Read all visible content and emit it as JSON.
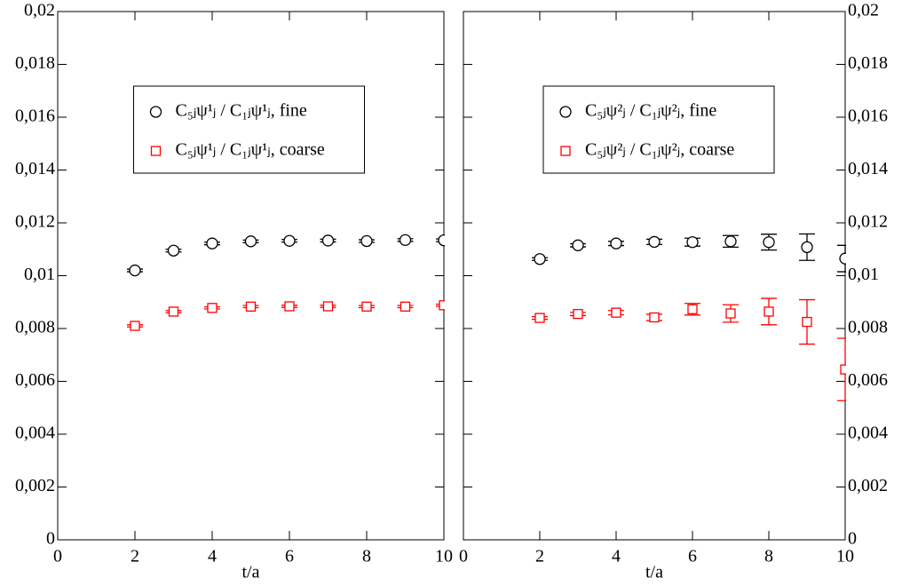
{
  "chart_data": [
    {
      "type": "scatter",
      "xlabel": "t/a",
      "xlim": [
        0,
        10
      ],
      "ylim": [
        0,
        0.02
      ],
      "xticks": [
        0,
        2,
        4,
        6,
        8,
        10
      ],
      "yticks": [
        0,
        {
          "value": 0.002,
          "label": "0,002"
        },
        {
          "value": 0.004,
          "label": "0,004"
        },
        {
          "value": 0.006,
          "label": "0,006"
        },
        {
          "value": 0.008,
          "label": "0,008"
        },
        {
          "value": 0.01,
          "label": "0,01"
        },
        {
          "value": 0.012,
          "label": "0,012"
        },
        {
          "value": 0.014,
          "label": "0,014"
        },
        {
          "value": 0.016,
          "label": "0,016"
        },
        {
          "value": 0.018,
          "label": "0,018"
        },
        {
          "value": 0.02,
          "label": "0,02"
        }
      ],
      "ytick_side": "left",
      "legend": "upper center",
      "x": [
        2,
        3,
        4,
        5,
        6,
        7,
        8,
        9,
        10
      ],
      "series": [
        {
          "name": "C₅ⱼψ¹ⱼ / C₁ⱼψ¹ⱼ, fine",
          "color": "#000000",
          "marker": "circle",
          "values": [
            0.0102,
            0.01095,
            0.01122,
            0.0113,
            0.01132,
            0.01133,
            0.01131,
            0.01135,
            0.01134
          ],
          "errors": [
            5e-05,
            5e-05,
            5e-05,
            5e-05,
            5e-05,
            5e-05,
            5e-05,
            5e-05,
            5e-05
          ]
        },
        {
          "name": "C₅ⱼψ¹ⱼ / C₁ⱼψ¹ⱼ, coarse",
          "color": "#ff0000",
          "marker": "square",
          "values": [
            0.0081,
            0.00864,
            0.00878,
            0.00883,
            0.00884,
            0.00884,
            0.00883,
            0.00883,
            0.00888
          ],
          "errors": [
            4e-05,
            4e-05,
            4e-05,
            4e-05,
            4e-05,
            4e-05,
            4e-05,
            4e-05,
            4e-05
          ]
        }
      ]
    },
    {
      "type": "scatter",
      "xlabel": "t/a",
      "xlim": [
        0,
        10
      ],
      "ylim": [
        0,
        0.02
      ],
      "xticks": [
        0,
        2,
        4,
        6,
        8,
        10
      ],
      "yticks": [
        0,
        {
          "value": 0.002,
          "label": "0,002"
        },
        {
          "value": 0.004,
          "label": "0,004"
        },
        {
          "value": 0.006,
          "label": "0,006"
        },
        {
          "value": 0.008,
          "label": "0,008"
        },
        {
          "value": 0.01,
          "label": "0,01"
        },
        {
          "value": 0.012,
          "label": "0,012"
        },
        {
          "value": 0.014,
          "label": "0,014"
        },
        {
          "value": 0.016,
          "label": "0,016"
        },
        {
          "value": 0.018,
          "label": "0,018"
        },
        {
          "value": 0.02,
          "label": "0,02"
        }
      ],
      "ytick_side": "right",
      "legend": "upper center",
      "x": [
        2,
        3,
        4,
        5,
        6,
        7,
        8,
        9,
        10
      ],
      "series": [
        {
          "name": "C₅ⱼψ²ⱼ / C₁ⱼψ²ⱼ, fine",
          "color": "#000000",
          "marker": "circle",
          "values": [
            0.01063,
            0.01115,
            0.01122,
            0.01128,
            0.01127,
            0.0113,
            0.01127,
            0.01108,
            0.01065
          ],
          "errors": [
            5e-05,
            6e-05,
            8e-05,
            0.0001,
            0.00015,
            0.00022,
            0.0003,
            0.0005,
            0.0005
          ]
        },
        {
          "name": "C₅ⱼψ²ⱼ / C₁ⱼψ²ⱼ, coarse",
          "color": "#ff0000",
          "marker": "square",
          "values": [
            0.0084,
            0.00855,
            0.0086,
            0.00842,
            0.00873,
            0.00857,
            0.00864,
            0.00825,
            0.00645
          ],
          "errors": [
            5e-05,
            6e-05,
            8e-05,
            0.00012,
            0.00022,
            0.00033,
            0.0005,
            0.00084,
            0.00118
          ]
        }
      ]
    }
  ]
}
